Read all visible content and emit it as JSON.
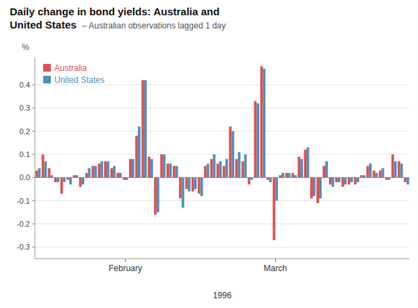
{
  "chart_data": {
    "type": "bar",
    "title": "Daily change in bond yields: Australia and\nUnited States",
    "subtitle": "– Australian observations lagged 1 day",
    "y_label": "%",
    "x_label": "1996",
    "categories": [
      null,
      null,
      null,
      null,
      null,
      null,
      null,
      null,
      null,
      null,
      null,
      null,
      null,
      null,
      "February",
      null,
      null,
      null,
      null,
      null,
      null,
      null,
      null,
      null,
      null,
      null,
      null,
      null,
      null,
      null,
      null,
      null,
      null,
      null,
      null,
      null,
      null,
      null,
      "March",
      null,
      null,
      null,
      null,
      null,
      null,
      null,
      null,
      null,
      null,
      null,
      null,
      null,
      null,
      null,
      null,
      null,
      null,
      null,
      null,
      null
    ],
    "series": [
      {
        "name": "Australia",
        "color": "#e05050",
        "values": [
          0.03,
          0.1,
          0.04,
          -0.02,
          -0.07,
          -0.01,
          0.01,
          -0.04,
          0.02,
          0.05,
          0.06,
          0.07,
          0.04,
          0.02,
          -0.01,
          0.08,
          0.18,
          0.42,
          0.09,
          -0.16,
          0.1,
          0.06,
          0.05,
          -0.09,
          -0.05,
          -0.06,
          -0.07,
          0.05,
          0.08,
          0.06,
          0.05,
          0.22,
          0.08,
          0.07,
          -0.03,
          0.33,
          0.48,
          -0.01,
          -0.27,
          0.01,
          0.02,
          0.02,
          0.09,
          0.12,
          -0.09,
          -0.11,
          0.05,
          -0.03,
          -0.02,
          -0.04,
          -0.03,
          -0.03,
          0.01,
          0.05,
          0.03,
          0.03,
          -0.01,
          0.1,
          0.07,
          -0.02
        ]
      },
      {
        "name": "United States",
        "color": "#5090b8",
        "values": [
          0.04,
          0.07,
          0.01,
          -0.02,
          -0.02,
          -0.03,
          0.01,
          -0.03,
          0.04,
          0.05,
          0.07,
          0.07,
          0.05,
          0.02,
          -0.01,
          0.08,
          0.22,
          0.42,
          0.08,
          -0.15,
          0.1,
          0.06,
          0.05,
          -0.13,
          -0.06,
          -0.05,
          -0.08,
          0.06,
          0.1,
          0.07,
          0.08,
          0.2,
          0.11,
          0.1,
          -0.01,
          0.32,
          0.47,
          -0.02,
          -0.1,
          0.02,
          0.02,
          0.01,
          0.08,
          0.13,
          -0.08,
          -0.09,
          0.07,
          -0.04,
          -0.02,
          -0.03,
          -0.02,
          -0.02,
          0.01,
          0.06,
          0.02,
          0.04,
          -0.01,
          0.07,
          0.06,
          -0.03
        ]
      }
    ],
    "ylim": [
      -0.35,
      0.52
    ],
    "yticks": [
      -0.3,
      -0.2,
      -0.1,
      {
        "value": 0,
        "label": "0.0"
      },
      0.1,
      0.2,
      0.3,
      0.4
    ],
    "grid": true,
    "legend": "upper left"
  }
}
